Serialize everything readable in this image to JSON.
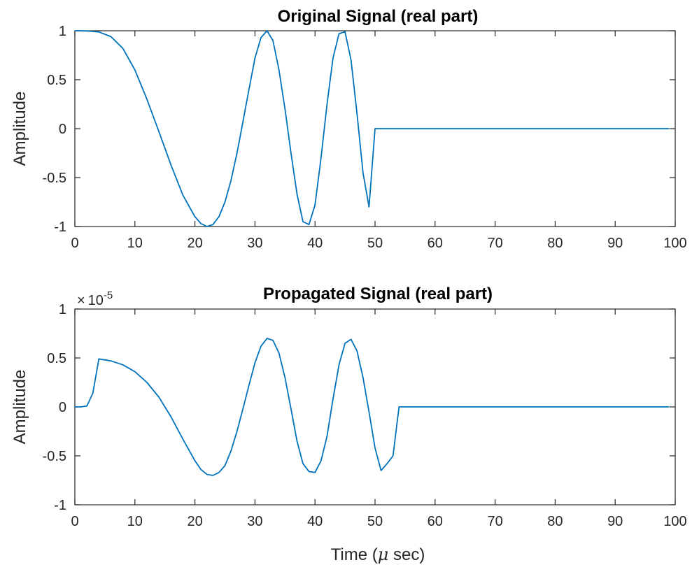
{
  "chart_data": [
    {
      "type": "line",
      "title": "Original Signal (real part)",
      "xlabel": "",
      "ylabel": "Amplitude",
      "xlim": [
        0,
        100
      ],
      "ylim": [
        -1,
        1
      ],
      "xticks": [
        "0",
        "10",
        "20",
        "30",
        "40",
        "50",
        "60",
        "70",
        "80",
        "90",
        "100"
      ],
      "yticks": [
        "-1",
        "-0.5",
        "0",
        "0.5",
        "1"
      ],
      "grid": false,
      "color": "#0072bd",
      "series": [
        {
          "x": [
            0,
            2,
            4,
            6,
            8,
            10,
            12,
            14,
            16,
            18,
            20,
            21,
            22,
            23,
            24,
            25,
            26,
            27,
            28,
            29,
            30,
            31,
            32,
            33,
            34,
            35,
            36,
            37,
            38,
            39,
            40,
            41,
            42,
            43,
            44,
            45,
            46,
            47,
            48,
            49,
            50,
            52,
            54,
            56,
            58,
            60,
            65,
            70,
            75,
            80,
            85,
            90,
            95,
            99
          ],
          "y": [
            1.0,
            0.998,
            0.988,
            0.94,
            0.82,
            0.6,
            0.3,
            -0.03,
            -0.37,
            -0.68,
            -0.9,
            -0.97,
            -1.0,
            -0.98,
            -0.9,
            -0.75,
            -0.53,
            -0.25,
            0.07,
            0.4,
            0.72,
            0.93,
            1.0,
            0.9,
            0.6,
            0.2,
            -0.25,
            -0.67,
            -0.95,
            -0.98,
            -0.78,
            -0.3,
            0.25,
            0.72,
            0.97,
            0.99,
            0.7,
            0.15,
            -0.45,
            -0.8,
            0.0,
            0.0,
            0.0,
            0.0,
            0.0,
            0.0,
            0.0,
            0.0,
            0.0,
            0.0,
            0.0,
            0.0,
            0.0,
            0.0
          ]
        }
      ]
    },
    {
      "type": "line",
      "title": "Propagated Signal (real part)",
      "xlabel": "Time (μ sec)",
      "ylabel": "Amplitude",
      "xlim": [
        0,
        100
      ],
      "ylim": [
        -1,
        1
      ],
      "y_exponent": "× 10^-5",
      "xticks": [
        "0",
        "10",
        "20",
        "30",
        "40",
        "50",
        "60",
        "70",
        "80",
        "90",
        "100"
      ],
      "yticks": [
        "-1",
        "-0.5",
        "0",
        "0.5",
        "1"
      ],
      "grid": false,
      "color": "#0072bd",
      "series": [
        {
          "x": [
            0,
            1,
            2,
            3,
            4,
            6,
            8,
            10,
            12,
            14,
            16,
            18,
            20,
            21,
            22,
            23,
            24,
            25,
            26,
            27,
            28,
            29,
            30,
            31,
            32,
            33,
            34,
            35,
            36,
            37,
            38,
            39,
            40,
            41,
            42,
            43,
            44,
            45,
            46,
            47,
            48,
            49,
            50,
            51,
            52,
            53,
            54,
            56,
            60,
            65,
            70,
            80,
            90,
            99
          ],
          "y": [
            0.0,
            0.0,
            0.01,
            0.14,
            0.49,
            0.47,
            0.43,
            0.36,
            0.25,
            0.1,
            -0.1,
            -0.33,
            -0.55,
            -0.64,
            -0.69,
            -0.7,
            -0.67,
            -0.6,
            -0.45,
            -0.25,
            -0.02,
            0.22,
            0.45,
            0.62,
            0.7,
            0.68,
            0.55,
            0.3,
            -0.02,
            -0.35,
            -0.58,
            -0.66,
            -0.67,
            -0.55,
            -0.3,
            0.08,
            0.43,
            0.65,
            0.69,
            0.57,
            0.3,
            -0.05,
            -0.42,
            -0.65,
            -0.58,
            -0.5,
            0.0,
            0.0,
            0.0,
            0.0,
            0.0,
            0.0,
            0.0,
            0.0
          ]
        }
      ]
    }
  ]
}
